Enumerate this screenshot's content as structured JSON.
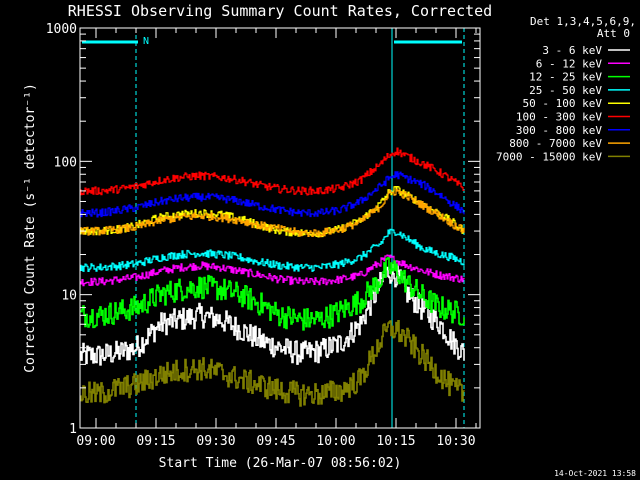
{
  "chart_data": {
    "type": "line",
    "title": "RHESSI Observing Summary Count Rates, Corrected",
    "xlabel": "Start Time (26-Mar-07 08:56:02)",
    "ylabel": "Corrected Count Rate (s⁻¹ detector⁻¹)",
    "x_range_min": [
      0,
      100
    ],
    "x_ticks": [
      {
        "t": 4,
        "label": "09:00"
      },
      {
        "t": 19,
        "label": "09:15"
      },
      {
        "t": 34,
        "label": "09:30"
      },
      {
        "t": 49,
        "label": "09:45"
      },
      {
        "t": 64,
        "label": "10:00"
      },
      {
        "t": 79,
        "label": "10:15"
      },
      {
        "t": 94,
        "label": "10:30"
      }
    ],
    "y_scale": "log",
    "ylim": [
      1,
      1000
    ],
    "y_ticks": [
      {
        "v": 1,
        "label": "1"
      },
      {
        "v": 10,
        "label": "10"
      },
      {
        "v": 100,
        "label": "100"
      },
      {
        "v": 1000,
        "label": "1000"
      }
    ],
    "legend": {
      "header": [
        "Det 1,3,4,5,6,9,",
        "Att 0"
      ],
      "placement": "right"
    },
    "date_stamp": "14-Oct-2021 13:58",
    "flag_label": "N",
    "markers": {
      "cyan_vertical_solid": [
        0,
        78
      ],
      "cyan_vertical_dashed": [
        14,
        78,
        96
      ],
      "cyan_top_bars": [
        [
          0,
          15
        ],
        [
          78,
          96
        ]
      ]
    },
    "x_samples": [
      0,
      5,
      10,
      14,
      20,
      25,
      30,
      35,
      40,
      45,
      50,
      55,
      60,
      65,
      70,
      75,
      77,
      79,
      82,
      86,
      90,
      93,
      96
    ],
    "series": [
      {
        "name": "3 - 6 keV",
        "color": "#ffffff",
        "values": [
          3.5,
          3.5,
          3.7,
          4,
          6,
          6.5,
          7,
          6.5,
          5.5,
          4.5,
          4,
          3.6,
          3.8,
          4.3,
          6,
          12,
          15,
          14,
          10,
          7.5,
          6,
          4.5,
          3.6
        ]
      },
      {
        "name": "6 - 12 keV",
        "color": "#ff00ff",
        "values": [
          12.5,
          12.5,
          13,
          13.5,
          15,
          16,
          16.5,
          16,
          15,
          14,
          13,
          12.5,
          12.5,
          13,
          14,
          17.5,
          19,
          18,
          16.5,
          15,
          14,
          13.5,
          13
        ]
      },
      {
        "name": "12 - 25 keV",
        "color": "#00ff00",
        "values": [
          7,
          7,
          7.5,
          8,
          10,
          11,
          11.5,
          11,
          10,
          8.5,
          7,
          6.5,
          6.5,
          7.5,
          9,
          13,
          16,
          15,
          12,
          9.5,
          8,
          7.5,
          7
        ]
      },
      {
        "name": "25 - 50 keV",
        "color": "#00ffff",
        "values": [
          16,
          16,
          16.5,
          17,
          19,
          20,
          20.5,
          20,
          19,
          17.5,
          16.5,
          16,
          16,
          17,
          19,
          24,
          29,
          30,
          26,
          22,
          20,
          19,
          17.5
        ]
      },
      {
        "name": "50 - 100 keV",
        "color": "#ffff00",
        "values": [
          30,
          30,
          31,
          33,
          38,
          40,
          41,
          40,
          37,
          33,
          30,
          29,
          29,
          31,
          36,
          48,
          58,
          62,
          55,
          47,
          40,
          35,
          30
        ]
      },
      {
        "name": "100 - 300 keV",
        "color": "#ff0000",
        "values": [
          60,
          60,
          62,
          65,
          72,
          76,
          78,
          76,
          72,
          66,
          62,
          60,
          60,
          63,
          72,
          95,
          110,
          120,
          108,
          95,
          82,
          72,
          62
        ]
      },
      {
        "name": "300 - 800 keV",
        "color": "#0000ff",
        "values": [
          41,
          41,
          43,
          45,
          50,
          53,
          54,
          53,
          50,
          46,
          43,
          41,
          41,
          43,
          50,
          65,
          74,
          80,
          74,
          66,
          56,
          48,
          42
        ]
      },
      {
        "name": "800 - 7000 keV",
        "color": "#ffa500",
        "values": [
          30,
          30,
          31,
          32,
          36,
          38,
          39,
          38,
          36,
          33,
          31,
          29,
          29,
          31,
          35,
          46,
          56,
          60,
          54,
          46,
          39,
          34,
          30
        ]
      },
      {
        "name": "7000 - 15000 keV",
        "color": "#808000",
        "values": [
          1.8,
          1.8,
          2,
          2.1,
          2.5,
          2.7,
          2.8,
          2.6,
          2.3,
          2.1,
          1.9,
          1.8,
          1.8,
          1.9,
          2.3,
          4.5,
          5.5,
          5.5,
          4.5,
          3.3,
          2.5,
          2,
          1.8
        ]
      }
    ]
  }
}
